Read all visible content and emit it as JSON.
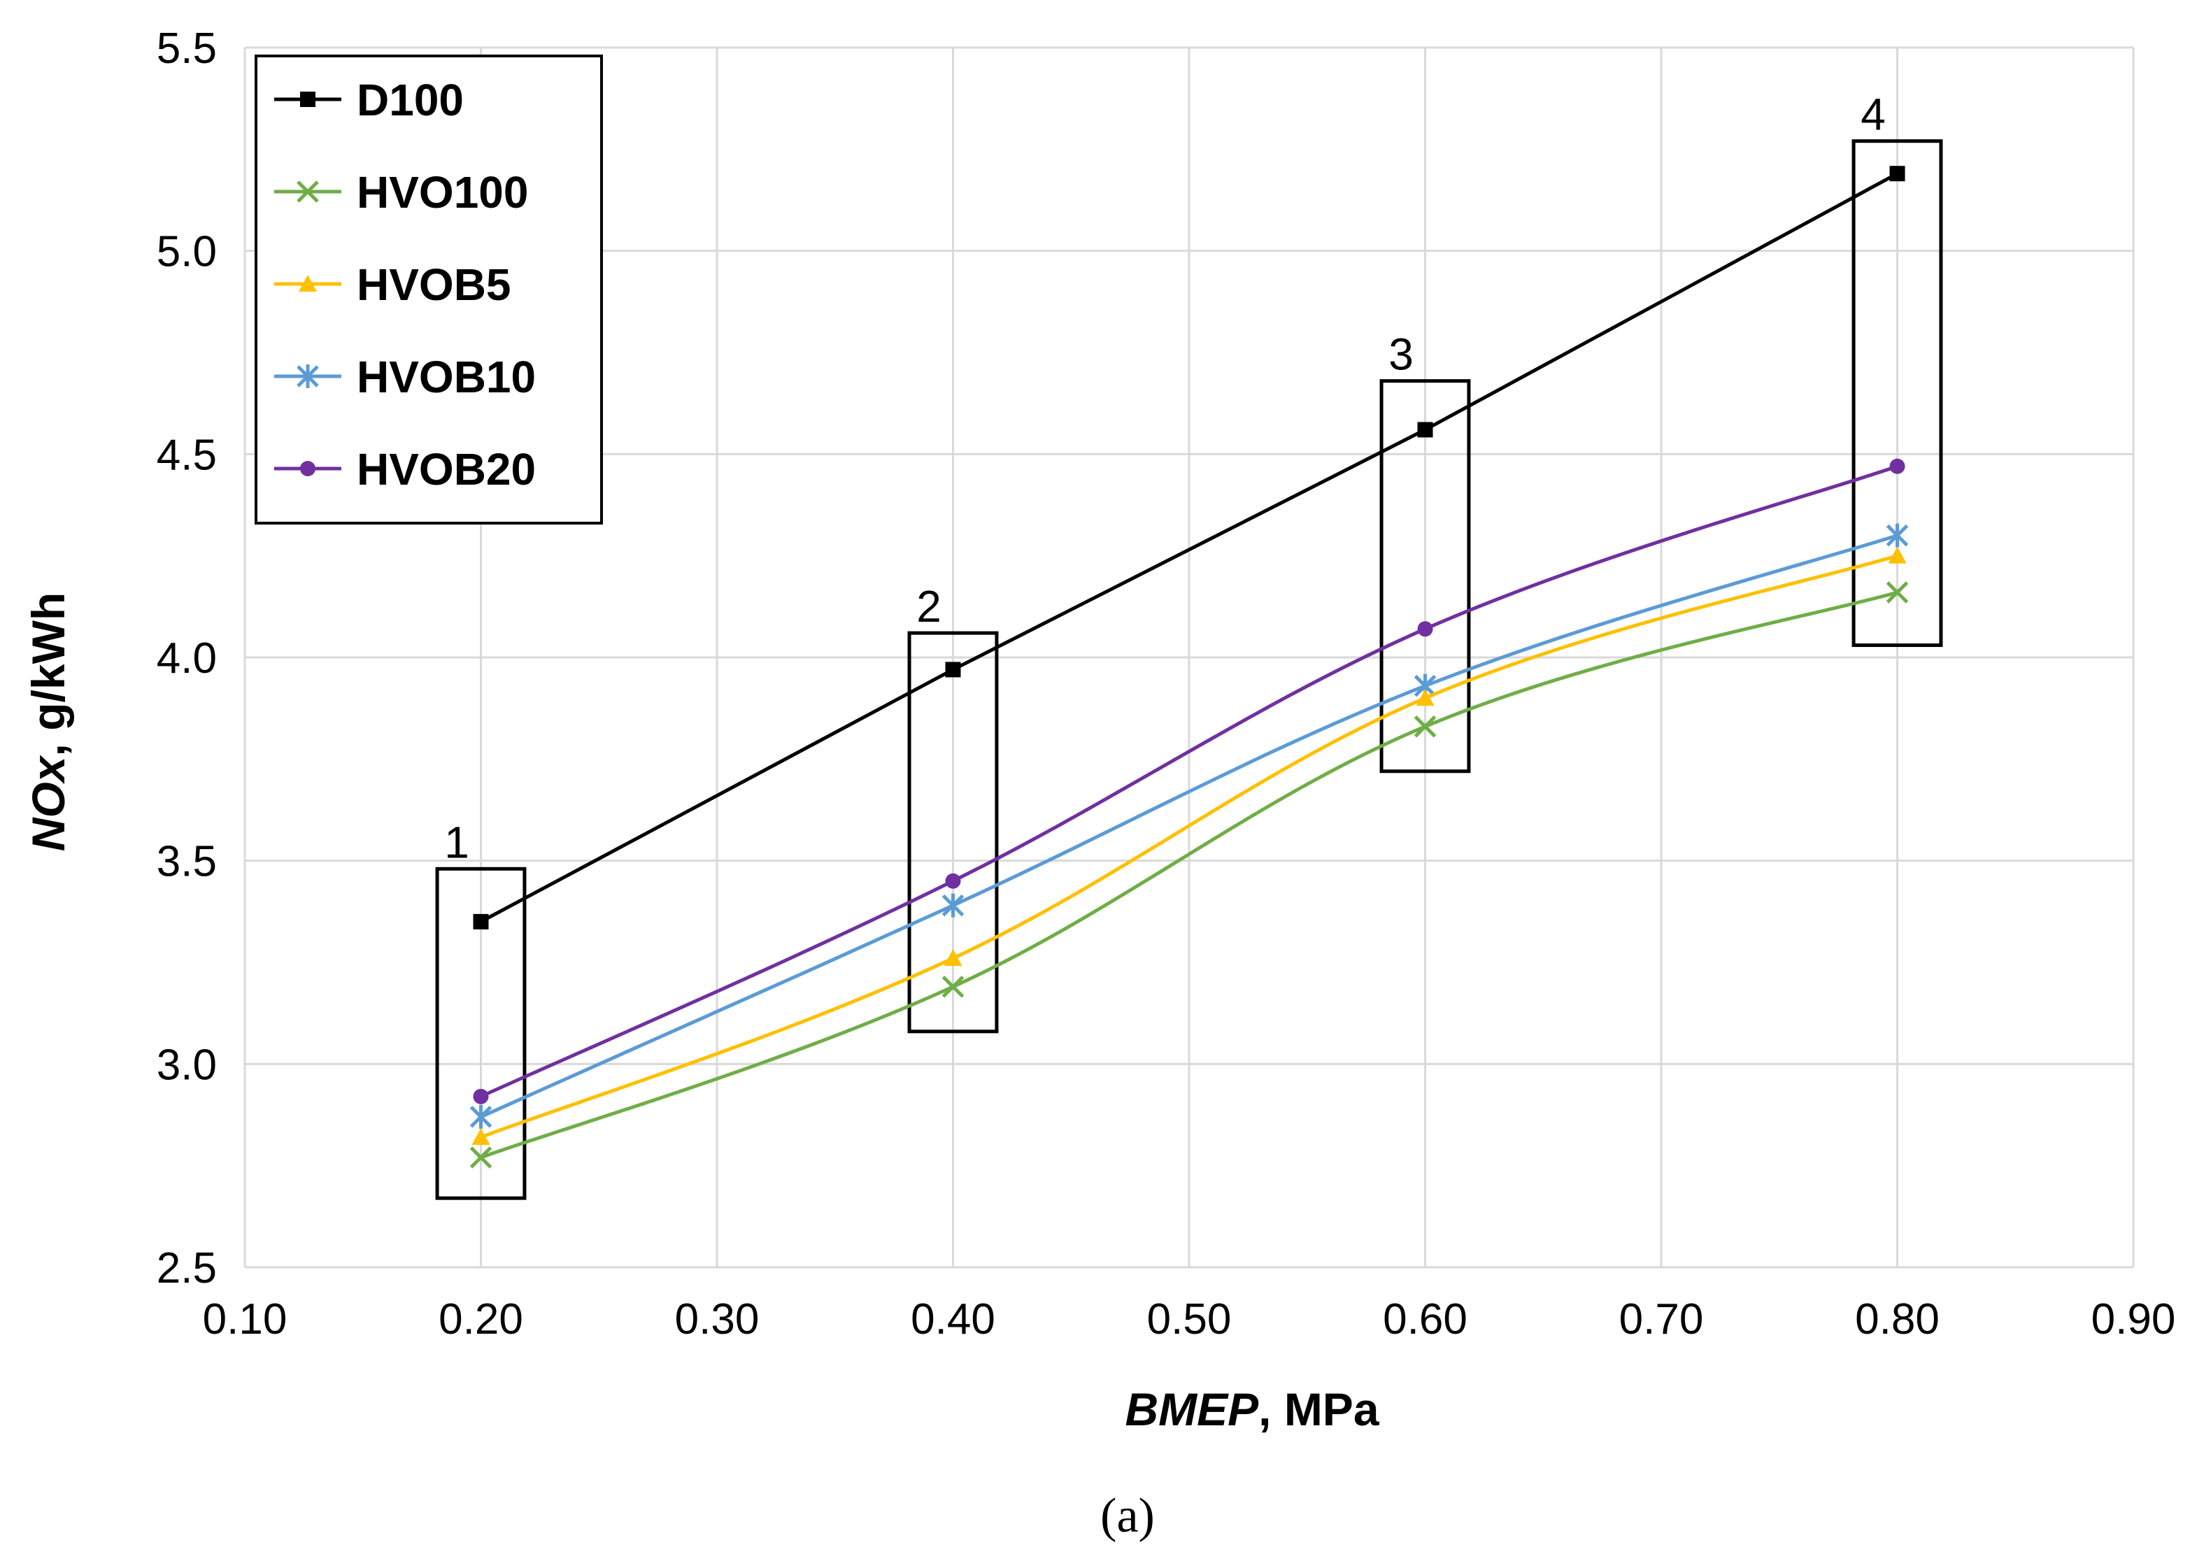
{
  "chart_data": {
    "type": "line",
    "title": "",
    "xlabel_italic": "BMEP",
    "xlabel_rest": ", MPa",
    "ylabel_italic": "NOx",
    "ylabel_rest": ", g/kWh",
    "caption": "(a)",
    "xlim": [
      0.1,
      0.9
    ],
    "ylim": [
      2.5,
      5.5
    ],
    "x_ticks": [
      "0.10",
      "0.20",
      "0.30",
      "0.40",
      "0.50",
      "0.60",
      "0.70",
      "0.80",
      "0.90"
    ],
    "y_ticks": [
      "2.5",
      "3.0",
      "3.5",
      "4.0",
      "4.5",
      "5.0",
      "5.5"
    ],
    "grid": true,
    "legend_position": "top-left",
    "x": [
      0.2,
      0.4,
      0.6,
      0.8
    ],
    "series": [
      {
        "name": "D100",
        "values": [
          3.35,
          3.97,
          4.56,
          5.19
        ],
        "color": "#000000",
        "marker": "square",
        "smooth": false
      },
      {
        "name": "HVO100",
        "values": [
          2.77,
          3.19,
          3.83,
          4.16
        ],
        "color": "#70ad47",
        "marker": "x",
        "smooth": true
      },
      {
        "name": "HVOB5",
        "values": [
          2.82,
          3.26,
          3.9,
          4.25
        ],
        "color": "#ffc000",
        "marker": "triangle",
        "smooth": true
      },
      {
        "name": "HVOB10",
        "values": [
          2.87,
          3.39,
          3.93,
          4.3
        ],
        "color": "#5b9bd5",
        "marker": "asterisk",
        "smooth": true
      },
      {
        "name": "HVOB20",
        "values": [
          2.92,
          3.45,
          4.07,
          4.47
        ],
        "color": "#7030a0",
        "marker": "circle",
        "smooth": true
      }
    ],
    "annotations": [
      {
        "label": "1",
        "x": 0.2,
        "y_range": [
          2.67,
          3.48
        ]
      },
      {
        "label": "2",
        "x": 0.4,
        "y_range": [
          3.08,
          4.06
        ]
      },
      {
        "label": "3",
        "x": 0.6,
        "y_range": [
          3.72,
          4.68
        ]
      },
      {
        "label": "4",
        "x": 0.8,
        "y_range": [
          4.03,
          5.27
        ]
      }
    ]
  }
}
